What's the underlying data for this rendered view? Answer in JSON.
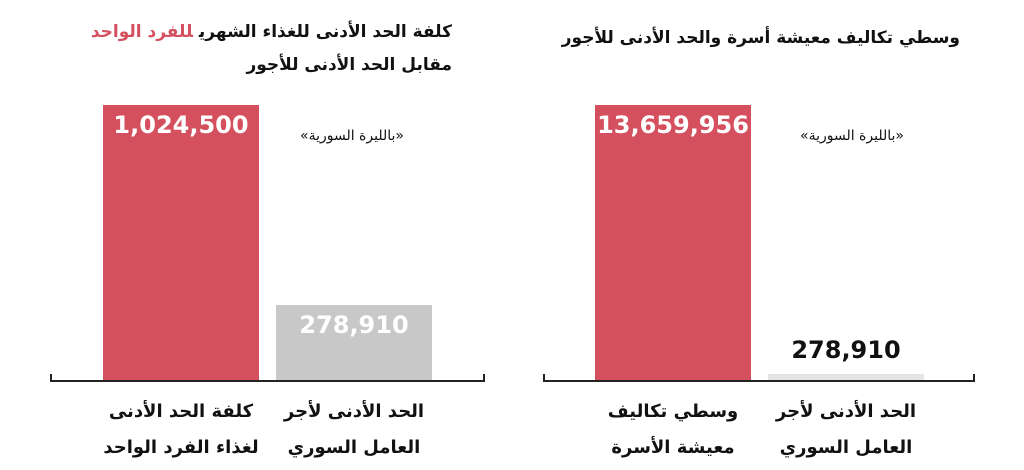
{
  "chart_data": [
    {
      "type": "bar",
      "title": "كلفة الحد الأدنى للغذاء الشهري",
      "title_highlight": "للفرد الواحد",
      "subtitle": "مقابل الحد الأدنى للأجور",
      "unit": "«بالليرة السورية»",
      "categories": [
        "كلفة الحد الأدنى لغذاء الفرد الواحد",
        "الحد الأدنى لأجر العامل السوري"
      ],
      "values": [
        1024500,
        278910
      ],
      "value_labels": [
        "1,024,500",
        "278,910"
      ],
      "colors": [
        "#d4505e",
        "#c8c8c8"
      ],
      "highlight_color": "#d4505e"
    },
    {
      "type": "bar",
      "title": "وسطي تكاليف معيشة أسرة والحد الأدنى للأجور",
      "unit": "«بالليرة السورية»",
      "categories": [
        "وسطي تكاليف معيشة الأسرة",
        "الحد الأدنى لأجر العامل السوري"
      ],
      "values": [
        13659956,
        278910
      ],
      "value_labels": [
        "13,659,956",
        "278,910"
      ],
      "colors": [
        "#d4505e",
        "#e4e4e4"
      ]
    }
  ]
}
